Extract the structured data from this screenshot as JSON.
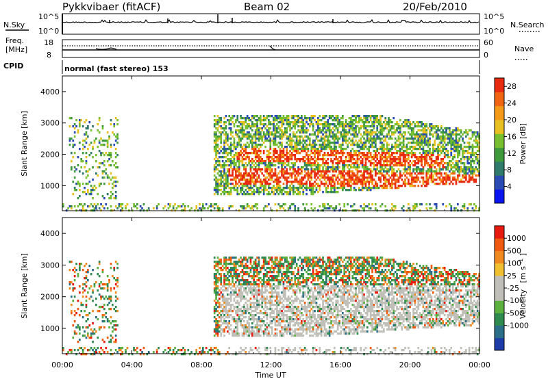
{
  "header": {
    "station": "Pykkvibaer (fitACF)",
    "beam": "Beam 02",
    "date": "20/Feb/2010"
  },
  "nsky_panel": {
    "left_label": "N.Sky",
    "right_label": "N.Search",
    "left_ticks": [
      "10^5",
      "10^0"
    ],
    "right_ticks": [
      "10^5",
      "10^0"
    ]
  },
  "freq_panel": {
    "left_label_line1": "Freq.",
    "left_label_line2": "[MHz]",
    "right_label": "Nave",
    "left_ticks": [
      "18",
      "8"
    ],
    "right_ticks": [
      "60",
      "0"
    ]
  },
  "cpid_panel": {
    "label": "CPID",
    "value": "normal (fast stereo) 153"
  },
  "chart_data": [
    {
      "type": "heatmap",
      "name": "power",
      "ylabel": "Slant Range [km]",
      "xlabel": "",
      "ylim": [
        200,
        4500
      ],
      "xlim_hours": [
        0,
        24
      ],
      "yticks": [
        "1000",
        "2000",
        "3000",
        "4000"
      ],
      "colorbar": {
        "label": "Power [dB]",
        "ticks": [
          "4",
          "8",
          "12",
          "16",
          "20",
          "24",
          "28"
        ],
        "range": [
          0,
          30
        ],
        "colors": [
          "#0a14f0",
          "#2a4ab4",
          "#2f7a6a",
          "#3f9a3c",
          "#78c030",
          "#e8c020",
          "#f59a18",
          "#f06414",
          "#e82a10"
        ]
      }
    },
    {
      "type": "heatmap",
      "name": "velocity",
      "ylabel": "Slant Range [km]",
      "xlabel": "Time UT",
      "ylim": [
        200,
        4500
      ],
      "xlim_hours": [
        0,
        24
      ],
      "yticks": [
        "1000",
        "2000",
        "3000",
        "4000"
      ],
      "xticks": [
        "00:00",
        "04:00",
        "08:00",
        "12:00",
        "16:00",
        "20:00",
        "00:00"
      ],
      "colorbar": {
        "label": "Velocity",
        "units": "[m s",
        "units_sup": "-1",
        "units_end": "]",
        "ticks": [
          "1000",
          "500",
          "100",
          "25",
          "-25",
          "-100",
          "-500",
          "-1000"
        ],
        "colors": [
          "#1e3ca8",
          "#2a6e88",
          "#2f8a50",
          "#5cb040",
          "#c0c0b8",
          "#c0c0b8",
          "#f0c030",
          "#f08a20",
          "#f05a10",
          "#e81a10"
        ]
      }
    }
  ]
}
